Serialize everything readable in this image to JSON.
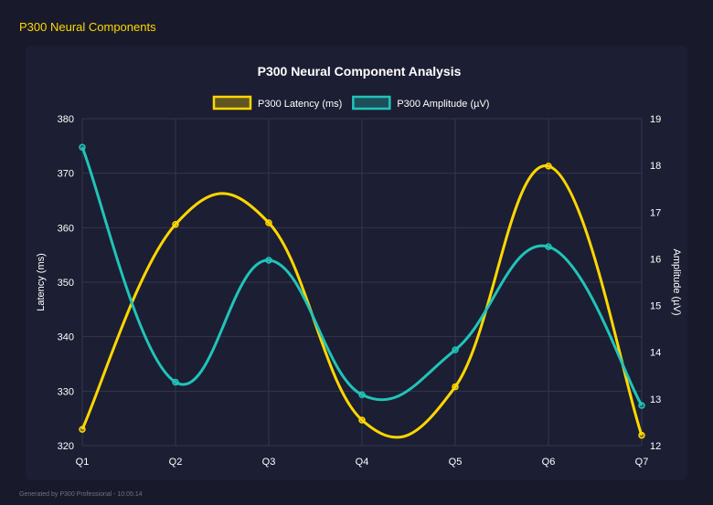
{
  "page_title": "P300 Neural Components",
  "footer": "Generated by P300 Professional - 10:05:14",
  "colors": {
    "latency": "#ffd700",
    "amplitude": "#20c4b8",
    "background": "#181a2b"
  },
  "chart_data": {
    "type": "line",
    "title": "P300 Neural Component Analysis",
    "categories": [
      "Q1",
      "Q2",
      "Q3",
      "Q4",
      "Q5",
      "Q6",
      "Q7"
    ],
    "legend_position": "top",
    "grid": true,
    "smooth": true,
    "y_left": {
      "label": "Latency (ms)",
      "range": [
        320,
        380
      ],
      "ticks": [
        320,
        330,
        340,
        350,
        360,
        370,
        380
      ]
    },
    "y_right": {
      "label": "Amplitude (µV)",
      "range": [
        12,
        19
      ],
      "ticks": [
        12,
        13,
        14,
        15,
        16,
        17,
        18,
        19
      ]
    },
    "series": [
      {
        "name": "P300 Latency (ms)",
        "axis": "left",
        "color": "#ffd700",
        "values": [
          323.0,
          360.6,
          360.9,
          324.7,
          330.8,
          371.3,
          321.9
        ]
      },
      {
        "name": "P300 Amplitude (µV)",
        "axis": "right",
        "color": "#20c4b8",
        "values": [
          18.39,
          13.36,
          15.97,
          13.09,
          14.05,
          16.26,
          12.86
        ]
      }
    ]
  }
}
